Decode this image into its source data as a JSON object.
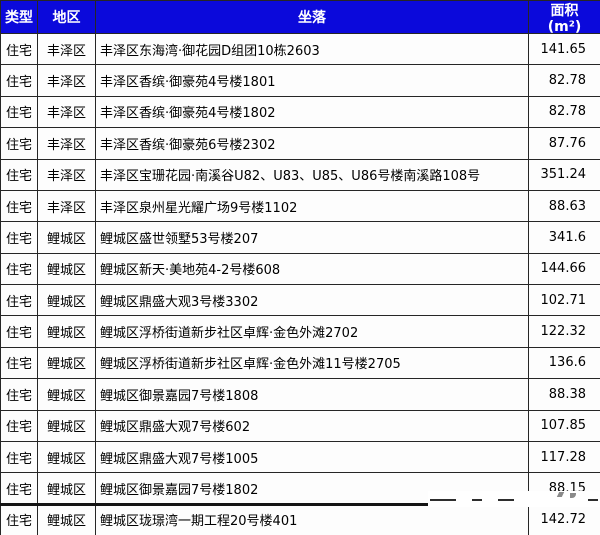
{
  "table": {
    "columns": [
      {
        "key": "type",
        "label": "类型"
      },
      {
        "key": "district",
        "label": "地区"
      },
      {
        "key": "location",
        "label": "坐落"
      },
      {
        "key": "area",
        "label": "面积",
        "label_line2": "(m²)"
      }
    ],
    "rows": [
      {
        "type": "住宅",
        "district": "丰泽区",
        "location": "丰泽区东海湾·御花园D组团10栋2603",
        "area": "141.65"
      },
      {
        "type": "住宅",
        "district": "丰泽区",
        "location": "丰泽区香缤·御豪苑4号楼1801",
        "area": "82.78"
      },
      {
        "type": "住宅",
        "district": "丰泽区",
        "location": "丰泽区香缤·御豪苑4号楼1802",
        "area": "82.78"
      },
      {
        "type": "住宅",
        "district": "丰泽区",
        "location": "丰泽区香缤·御豪苑6号楼2302",
        "area": "87.76"
      },
      {
        "type": "住宅",
        "district": "丰泽区",
        "location": "丰泽区宝珊花园·南溪谷U82、U83、U85、U86号楼南溪路108号",
        "area": "351.24"
      },
      {
        "type": "住宅",
        "district": "丰泽区",
        "location": "丰泽区泉州星光耀广场9号楼1102",
        "area": "88.63"
      },
      {
        "type": "住宅",
        "district": "鲤城区",
        "location": "鲤城区盛世领墅53号楼207",
        "area": "341.6"
      },
      {
        "type": "住宅",
        "district": "鲤城区",
        "location": "鲤城区新天·美地苑4-2号楼608",
        "area": "144.66"
      },
      {
        "type": "住宅",
        "district": "鲤城区",
        "location": "鲤城区鼎盛大观3号楼3302",
        "area": "102.71"
      },
      {
        "type": "住宅",
        "district": "鲤城区",
        "location": "鲤城区浮桥街道新步社区卓辉·金色外滩2702",
        "area": "122.32"
      },
      {
        "type": "住宅",
        "district": "鲤城区",
        "location": "鲤城区浮桥街道新步社区卓辉·金色外滩11号楼2705",
        "area": "136.6"
      },
      {
        "type": "住宅",
        "district": "鲤城区",
        "location": "鲤城区御景嘉园7号楼1808",
        "area": "88.38"
      },
      {
        "type": "住宅",
        "district": "鲤城区",
        "location": "鲤城区鼎盛大观7号楼602",
        "area": "107.85"
      },
      {
        "type": "住宅",
        "district": "鲤城区",
        "location": "鲤城区鼎盛大观7号楼1005",
        "area": "117.28"
      },
      {
        "type": "住宅",
        "district": "鲤城区",
        "location": "鲤城区御景嘉园7号楼1802",
        "area": "88.15",
        "area_obscured_by_watermark": true
      },
      {
        "type": "住宅",
        "district": "鲤城区",
        "location": "鲤城区珑璟湾一期工程20号楼401",
        "area": "142.72"
      }
    ]
  },
  "colors": {
    "header_bg": "#0b09db",
    "header_text": "#ffffff",
    "grid_line": "#262626",
    "body_text": "#000000",
    "page_bg": "#fdfdfd"
  }
}
